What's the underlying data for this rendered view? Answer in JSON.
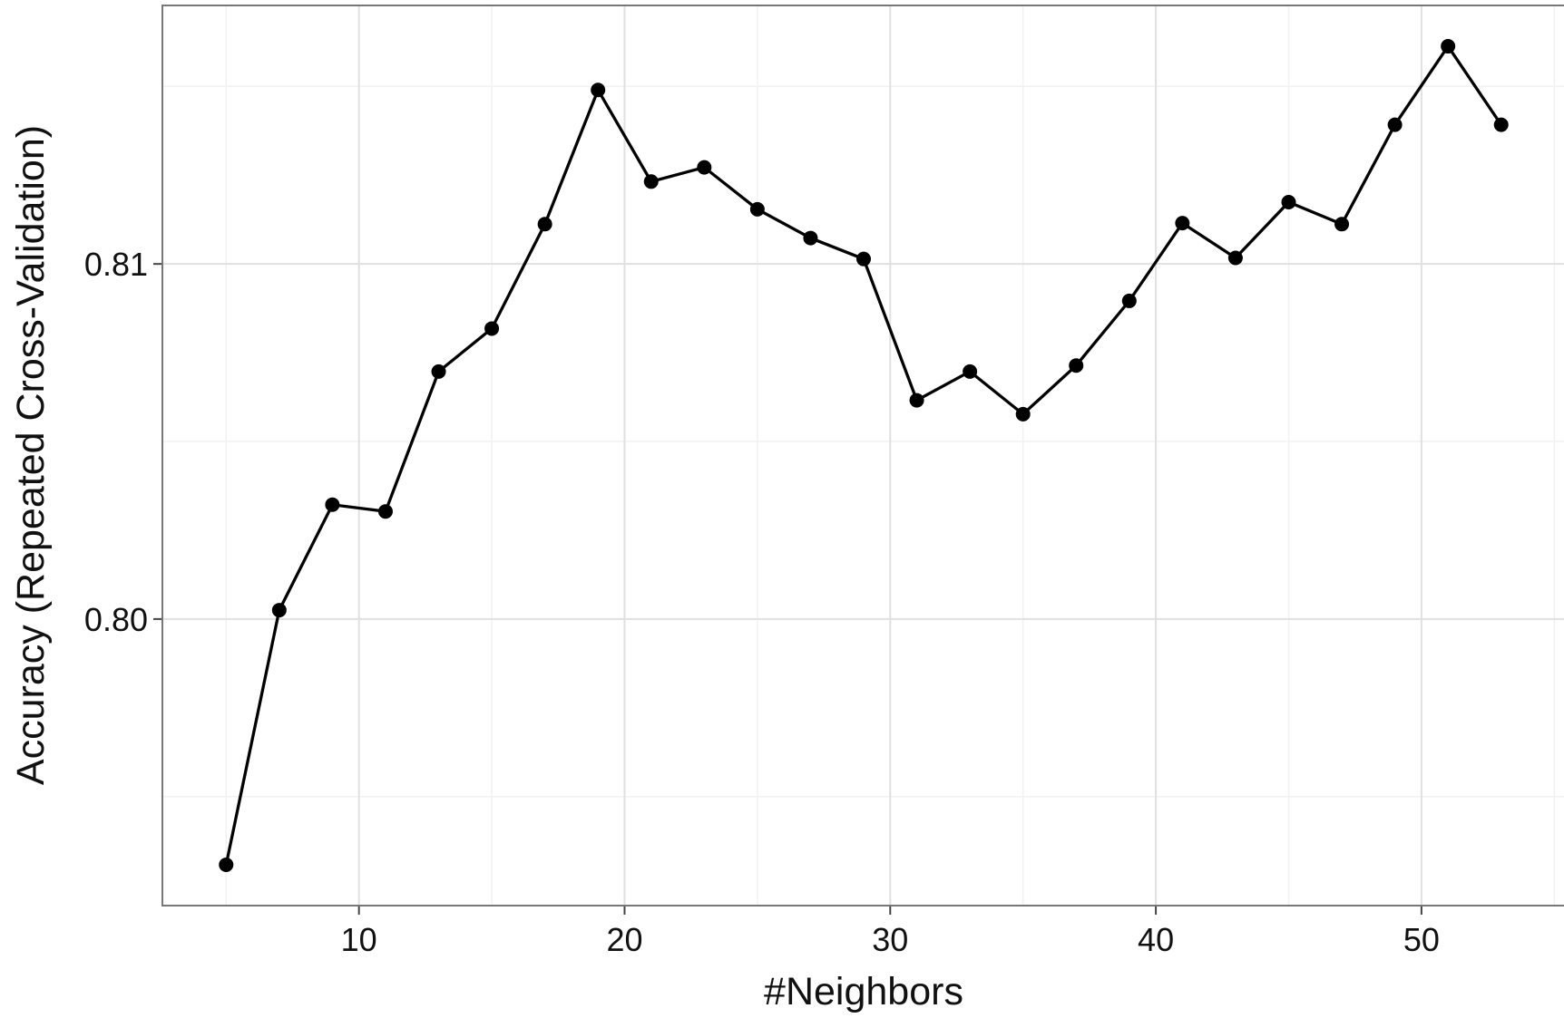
{
  "chart_data": {
    "type": "line",
    "x_label": "#Neighbors",
    "y_label": "Accuracy (Repeated Cross-Validation)",
    "x": [
      5,
      7,
      9,
      11,
      13,
      15,
      17,
      19,
      21,
      23,
      25,
      27,
      29,
      31,
      33,
      35,
      37,
      39,
      41,
      43,
      45,
      47,
      49,
      51,
      53
    ],
    "values": [
      0.79308,
      0.80025,
      0.80322,
      0.80303,
      0.80697,
      0.80818,
      0.81112,
      0.8149,
      0.81232,
      0.81272,
      0.81154,
      0.81073,
      0.81014,
      0.80616,
      0.80697,
      0.80577,
      0.80714,
      0.80896,
      0.81115,
      0.81017,
      0.81174,
      0.81112,
      0.81392,
      0.81613,
      0.81392
    ],
    "color": "#000000",
    "xlim": [
      2.6,
      55.4
    ],
    "ylim": [
      0.79193,
      0.81728
    ],
    "xticks": [
      10,
      20,
      30,
      40,
      50
    ],
    "yticks": [
      {
        "value": 0.8,
        "label": "0.80"
      },
      0.81
    ],
    "xminor": [
      5,
      15,
      25,
      35,
      45,
      55
    ],
    "yminor": [
      0.795,
      0.805,
      0.815
    ],
    "grid": true
  }
}
